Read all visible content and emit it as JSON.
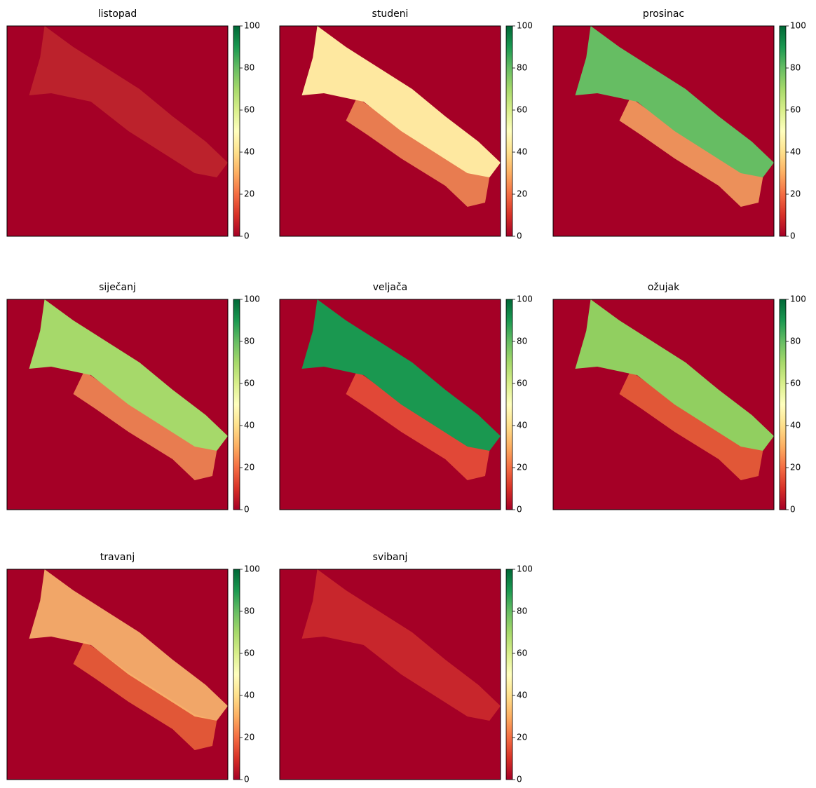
{
  "chart_data": [
    {
      "type": "heatmap",
      "title": "listopad",
      "colormap": "RdYlGn",
      "clim": [
        0,
        100
      ],
      "cticks": [
        0,
        20,
        40,
        60,
        80,
        100
      ]
    },
    {
      "type": "heatmap",
      "title": "studeni",
      "colormap": "RdYlGn",
      "clim": [
        0,
        100
      ],
      "cticks": [
        0,
        20,
        40,
        60,
        80,
        100
      ]
    },
    {
      "type": "heatmap",
      "title": "prosinac",
      "colormap": "RdYlGn",
      "clim": [
        0,
        100
      ],
      "cticks": [
        0,
        20,
        40,
        60,
        80,
        100
      ]
    },
    {
      "type": "heatmap",
      "title": "siječanj",
      "colormap": "RdYlGn",
      "clim": [
        0,
        100
      ],
      "cticks": [
        0,
        20,
        40,
        60,
        80,
        100
      ]
    },
    {
      "type": "heatmap",
      "title": "veljača",
      "colormap": "RdYlGn",
      "clim": [
        0,
        100
      ],
      "cticks": [
        0,
        20,
        40,
        60,
        80,
        100
      ]
    },
    {
      "type": "heatmap",
      "title": "ožujak",
      "colormap": "RdYlGn",
      "clim": [
        0,
        100
      ],
      "cticks": [
        0,
        20,
        40,
        60,
        80,
        100
      ]
    },
    {
      "type": "heatmap",
      "title": "travanj",
      "colormap": "RdYlGn",
      "clim": [
        0,
        100
      ],
      "cticks": [
        0,
        20,
        40,
        60,
        80,
        100
      ]
    },
    {
      "type": "heatmap",
      "title": "svibanj",
      "colormap": "RdYlGn",
      "clim": [
        0,
        100
      ],
      "cticks": [
        0,
        20,
        40,
        60,
        80,
        100
      ]
    }
  ]
}
